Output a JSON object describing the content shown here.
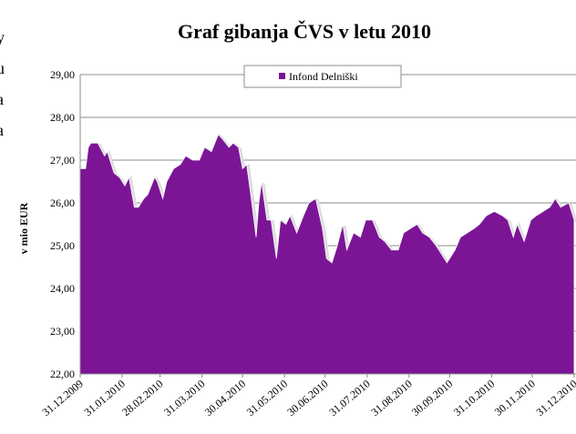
{
  "margin_fragments": [
    "y",
    "u",
    "a",
    "a"
  ],
  "chart_data": {
    "type": "area",
    "title": "Graf gibanja ČVS v letu 2010",
    "y_label": "v mio EUR",
    "legend": "top",
    "grid": true,
    "x": [
      "31.12.2009",
      "04.01.2010",
      "06.01.2010",
      "08.01.2010",
      "13.01.2010",
      "18.01.2010",
      "20.01.2010",
      "25.01.2010",
      "29.01.2010",
      "02.02.2010",
      "05.02.2010",
      "09.02.2010",
      "12.02.2010",
      "16.02.2010",
      "19.02.2010",
      "24.02.2010",
      "26.02.2010",
      "02.03.2010",
      "05.03.2010",
      "10.03.2010",
      "15.03.2010",
      "19.03.2010",
      "24.03.2010",
      "29.03.2010",
      "02.04.2010",
      "07.04.2010",
      "12.04.2010",
      "15.04.2010",
      "20.04.2010",
      "23.04.2010",
      "27.04.2010",
      "30.04.2010",
      "03.05.2010",
      "06.05.2010",
      "10.05.2010",
      "12.05.2010",
      "14.05.2010",
      "18.05.2010",
      "21.05.2010",
      "25.05.2010",
      "28.05.2010",
      "01.06.2010",
      "04.06.2010",
      "09.06.2010",
      "14.06.2010",
      "18.06.2010",
      "23.06.2010",
      "28.06.2010",
      "01.07.2010",
      "05.07.2010",
      "09.07.2010",
      "13.07.2010",
      "16.07.2010",
      "21.07.2010",
      "26.07.2010",
      "30.07.2010",
      "04.08.2010",
      "09.08.2010",
      "13.08.2010",
      "18.08.2010",
      "23.08.2010",
      "27.08.2010",
      "01.09.2010",
      "06.09.2010",
      "10.09.2010",
      "15.09.2010",
      "20.09.2010",
      "24.09.2010",
      "28.09.2010",
      "04.10.2010",
      "08.10.2010",
      "13.10.2010",
      "18.10.2010",
      "22.10.2010",
      "27.10.2010",
      "02.11.2010",
      "08.11.2010",
      "12.11.2010",
      "16.11.2010",
      "19.11.2010",
      "24.11.2010",
      "29.11.2010",
      "03.12.2010",
      "08.12.2010",
      "13.12.2010",
      "17.12.2010",
      "21.12.2010",
      "27.12.2010",
      "31.12.2010"
    ],
    "series": [
      {
        "name": "Infond Delniški",
        "color": "#7b1596",
        "values": [
          26.8,
          26.8,
          27.3,
          27.4,
          27.4,
          27.1,
          27.2,
          26.7,
          26.6,
          26.4,
          26.6,
          25.9,
          25.9,
          26.1,
          26.2,
          26.6,
          26.5,
          26.1,
          26.5,
          26.8,
          26.9,
          27.1,
          27.0,
          27.0,
          27.3,
          27.2,
          27.6,
          27.5,
          27.3,
          27.4,
          27.3,
          26.8,
          26.9,
          26.2,
          25.2,
          26.0,
          26.5,
          25.6,
          25.6,
          24.7,
          25.6,
          25.5,
          25.7,
          25.3,
          25.7,
          26.0,
          26.1,
          25.4,
          24.7,
          24.6,
          25.0,
          25.5,
          24.9,
          25.3,
          25.2,
          25.6,
          25.6,
          25.2,
          25.1,
          24.9,
          24.9,
          25.3,
          25.4,
          25.5,
          25.3,
          25.2,
          25.0,
          24.8,
          24.6,
          24.9,
          25.2,
          25.3,
          25.4,
          25.5,
          25.7,
          25.8,
          25.7,
          25.6,
          25.2,
          25.5,
          25.1,
          25.6,
          25.7,
          25.8,
          25.9,
          26.1,
          25.9,
          26.0,
          25.6
        ]
      }
    ],
    "ylim": [
      22,
      29
    ],
    "yticks": [
      {
        "value": 22,
        "label": "22,00"
      },
      {
        "value": 23,
        "label": "23,00"
      },
      {
        "value": 24,
        "label": "24,00"
      },
      {
        "value": 25,
        "label": "25,00"
      },
      {
        "value": 26,
        "label": "26,00"
      },
      {
        "value": 27,
        "label": "27,00"
      },
      {
        "value": 28,
        "label": "28,00"
      },
      {
        "value": 29,
        "label": "29,00"
      }
    ],
    "xlim": [
      "31.12.2009",
      "31.12.2010"
    ],
    "xticks": [
      "31.12.2009",
      "31.01.2010",
      "28.02.2010",
      "31.03.2010",
      "30.04.2010",
      "31.05.2010",
      "30.06.2010",
      "31.07.2010",
      "31.08.2010",
      "30.09.2010",
      "31.10.2010",
      "30.11.2010",
      "31.12.2010"
    ]
  }
}
